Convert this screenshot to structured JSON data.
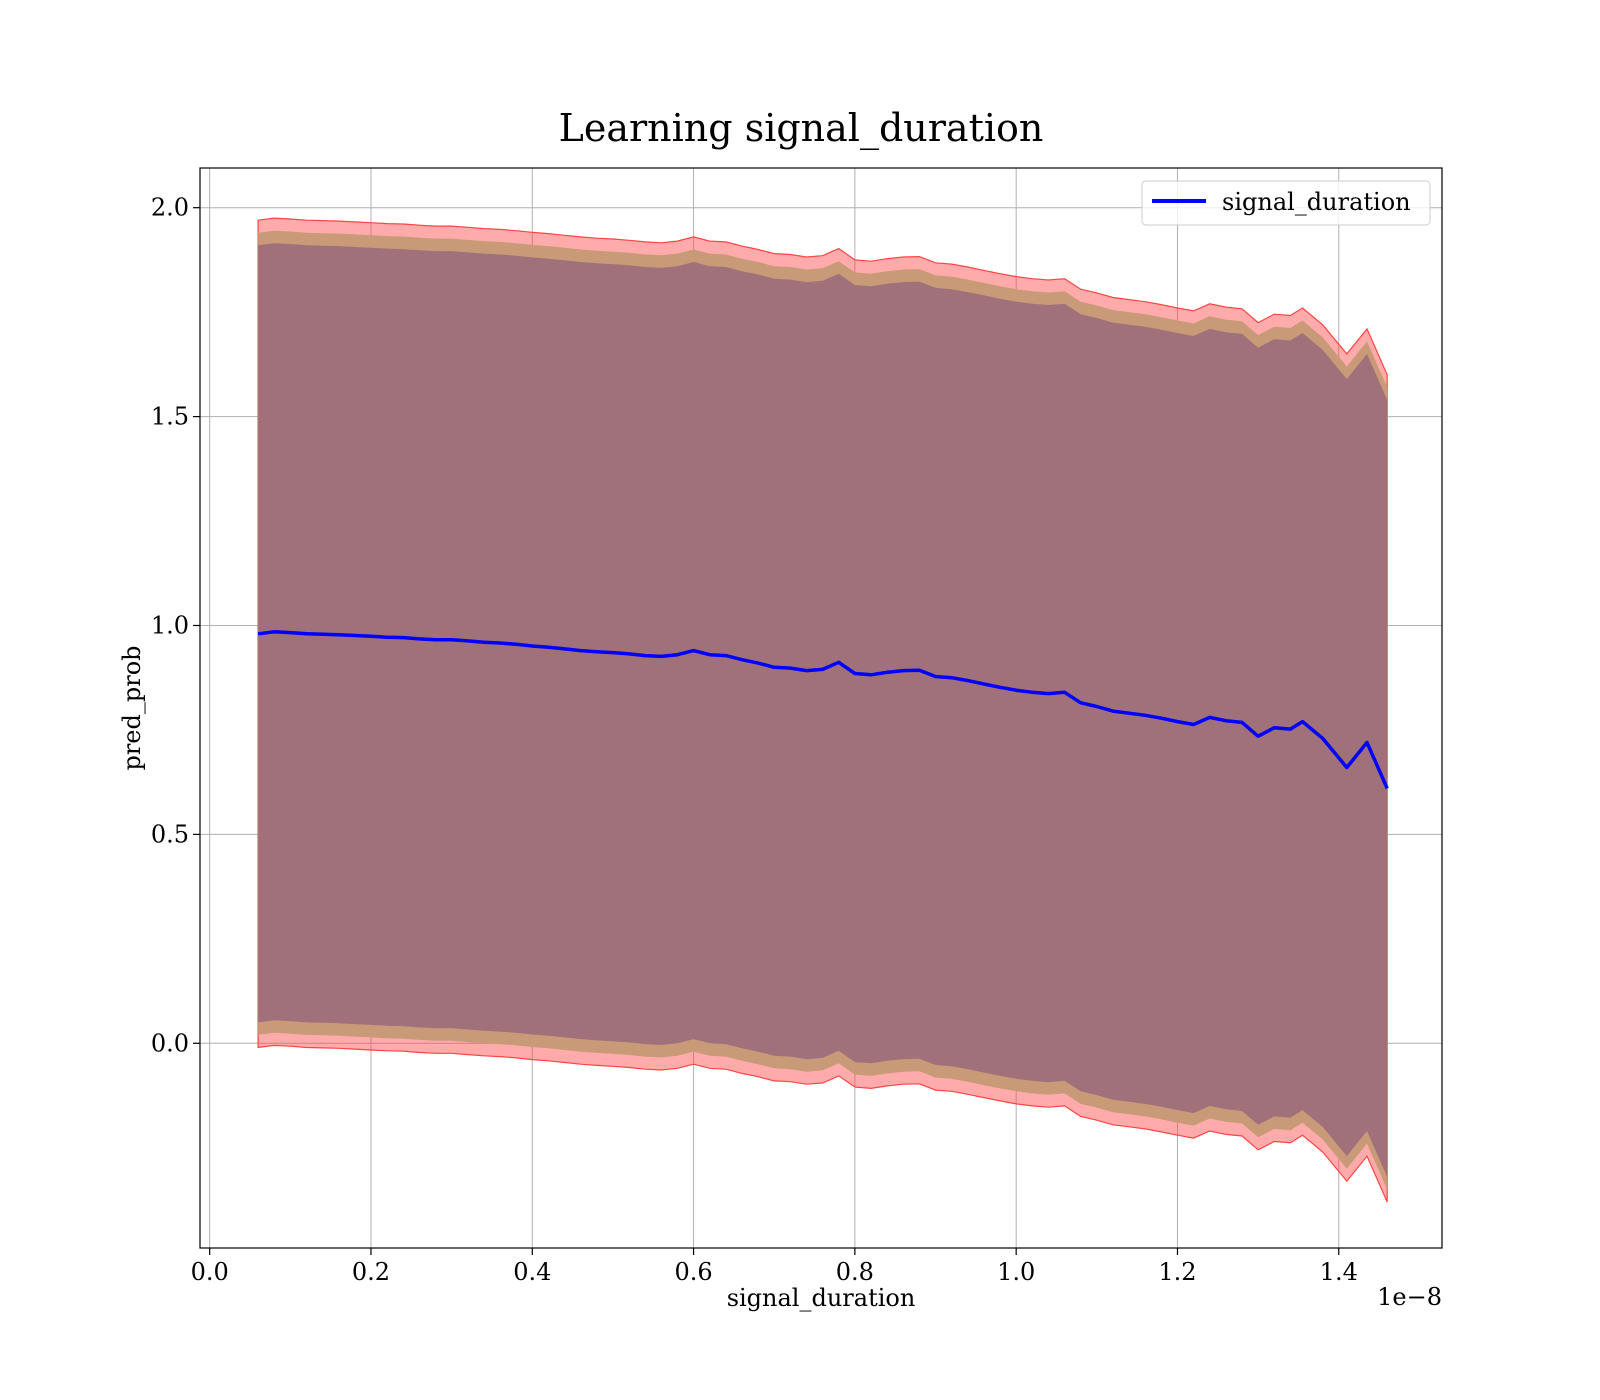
{
  "chart_data": {
    "type": "line",
    "title": "Learning signal_duration",
    "xlabel": "signal_duration",
    "ylabel": "pred_prob",
    "x_offset_text": "1e−8",
    "x_ticks": [
      "0.0",
      "0.2",
      "0.4",
      "0.6",
      "0.8",
      "1.0",
      "1.2",
      "1.4"
    ],
    "y_ticks": [
      "0.0",
      "0.5",
      "1.0",
      "1.5",
      "2.0"
    ],
    "x_tick_values": [
      0.0,
      0.2,
      0.4,
      0.6,
      0.8,
      1.0,
      1.2,
      1.4
    ],
    "y_tick_values": [
      0.0,
      0.5,
      1.0,
      1.5,
      2.0
    ],
    "xlim": [
      -0.012,
      1.528
    ],
    "ylim": [
      -0.49,
      2.095
    ],
    "grid": true,
    "legend": {
      "position": "upper right",
      "entries": [
        "signal_duration"
      ]
    },
    "colors": {
      "line": "#0000ff",
      "outer_band": "#ff4444",
      "mid_band": "#c89a78",
      "inner_band": "#a0717a"
    },
    "x": [
      0.06,
      0.08,
      0.1,
      0.12,
      0.14,
      0.16,
      0.18,
      0.2,
      0.22,
      0.24,
      0.26,
      0.28,
      0.3,
      0.32,
      0.34,
      0.36,
      0.38,
      0.4,
      0.42,
      0.44,
      0.46,
      0.48,
      0.5,
      0.52,
      0.54,
      0.56,
      0.58,
      0.6,
      0.62,
      0.64,
      0.66,
      0.68,
      0.7,
      0.72,
      0.74,
      0.76,
      0.78,
      0.8,
      0.82,
      0.84,
      0.86,
      0.88,
      0.9,
      0.92,
      0.94,
      0.96,
      0.98,
      1.0,
      1.02,
      1.04,
      1.06,
      1.08,
      1.1,
      1.12,
      1.14,
      1.16,
      1.18,
      1.2,
      1.22,
      1.24,
      1.26,
      1.28,
      1.3,
      1.32,
      1.34,
      1.355,
      1.38,
      1.41,
      1.435,
      1.46
    ],
    "series": [
      {
        "name": "signal_duration",
        "values": [
          0.98,
          0.985,
          0.983,
          0.98,
          0.979,
          0.978,
          0.976,
          0.974,
          0.972,
          0.971,
          0.968,
          0.966,
          0.966,
          0.963,
          0.96,
          0.958,
          0.955,
          0.951,
          0.948,
          0.944,
          0.94,
          0.937,
          0.935,
          0.932,
          0.928,
          0.926,
          0.93,
          0.94,
          0.93,
          0.928,
          0.918,
          0.91,
          0.9,
          0.898,
          0.892,
          0.895,
          0.912,
          0.885,
          0.882,
          0.888,
          0.892,
          0.893,
          0.878,
          0.875,
          0.868,
          0.86,
          0.852,
          0.845,
          0.84,
          0.837,
          0.84,
          0.815,
          0.806,
          0.795,
          0.79,
          0.785,
          0.778,
          0.77,
          0.763,
          0.78,
          0.772,
          0.768,
          0.735,
          0.755,
          0.752,
          0.77,
          0.73,
          0.66,
          0.72,
          0.61
        ]
      }
    ],
    "bands": [
      {
        "spread": [
          0.99,
          0.99,
          0.99,
          0.99,
          0.99,
          0.99,
          0.99,
          0.99,
          0.99,
          0.99,
          0.99,
          0.99,
          0.99,
          0.99,
          0.99,
          0.99,
          0.99,
          0.99,
          0.99,
          0.99,
          0.99,
          0.99,
          0.99,
          0.99,
          0.99,
          0.99,
          0.99,
          0.99,
          0.99,
          0.99,
          0.99,
          0.99,
          0.99,
          0.99,
          0.99,
          0.99,
          0.99,
          0.99,
          0.99,
          0.99,
          0.99,
          0.99,
          0.99,
          0.99,
          0.99,
          0.99,
          0.99,
          0.99,
          0.99,
          0.99,
          0.99,
          0.99,
          0.99,
          0.99,
          0.99,
          0.99,
          0.99,
          0.99,
          0.99,
          0.99,
          0.99,
          0.99,
          0.99,
          0.99,
          0.99,
          0.99,
          0.99,
          0.99,
          0.99,
          0.99
        ]
      },
      {
        "spread": [
          0.96,
          0.96,
          0.96,
          0.96,
          0.96,
          0.96,
          0.96,
          0.96,
          0.96,
          0.96,
          0.96,
          0.96,
          0.96,
          0.96,
          0.96,
          0.96,
          0.96,
          0.96,
          0.96,
          0.96,
          0.96,
          0.96,
          0.96,
          0.96,
          0.96,
          0.96,
          0.96,
          0.96,
          0.96,
          0.96,
          0.96,
          0.96,
          0.96,
          0.96,
          0.96,
          0.96,
          0.96,
          0.96,
          0.96,
          0.96,
          0.96,
          0.96,
          0.96,
          0.96,
          0.96,
          0.96,
          0.96,
          0.96,
          0.96,
          0.96,
          0.96,
          0.96,
          0.96,
          0.96,
          0.96,
          0.96,
          0.96,
          0.96,
          0.96,
          0.96,
          0.96,
          0.96,
          0.96,
          0.96,
          0.96,
          0.96,
          0.96,
          0.96,
          0.96,
          0.96
        ]
      },
      {
        "spread": [
          0.93,
          0.93,
          0.93,
          0.93,
          0.93,
          0.93,
          0.93,
          0.93,
          0.93,
          0.93,
          0.93,
          0.93,
          0.93,
          0.93,
          0.93,
          0.93,
          0.93,
          0.93,
          0.93,
          0.93,
          0.93,
          0.93,
          0.93,
          0.93,
          0.93,
          0.93,
          0.93,
          0.93,
          0.93,
          0.93,
          0.93,
          0.93,
          0.93,
          0.93,
          0.93,
          0.93,
          0.93,
          0.93,
          0.93,
          0.93,
          0.93,
          0.93,
          0.93,
          0.93,
          0.93,
          0.93,
          0.93,
          0.93,
          0.93,
          0.93,
          0.93,
          0.93,
          0.93,
          0.93,
          0.93,
          0.93,
          0.93,
          0.93,
          0.93,
          0.93,
          0.93,
          0.93,
          0.93,
          0.93,
          0.93,
          0.93,
          0.93,
          0.93,
          0.93,
          0.93
        ]
      }
    ]
  }
}
